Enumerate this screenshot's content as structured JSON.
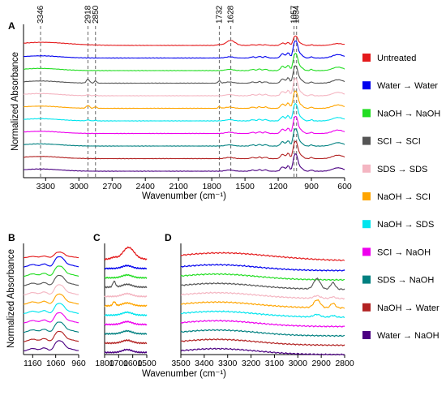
{
  "chart_data": [
    {
      "panel": "A",
      "type": "line",
      "ylabel": "Normalized Absorbance",
      "xlabel": "Wavenumber (cm⁻¹)",
      "xlim": [
        3500,
        600
      ],
      "xticks": [
        3300,
        3000,
        2700,
        2400,
        2100,
        1800,
        1500,
        1200,
        900,
        600
      ],
      "peak_lines": [
        3346,
        2918,
        2850,
        1732,
        1628,
        1057,
        1034
      ],
      "series_order": [
        "Untreated",
        "Water → Water",
        "NaOH → NaOH",
        "SCI → SCI",
        "SDS → SDS",
        "NaOH → SCI",
        "NaOH → SDS",
        "SCI → NaOH",
        "SDS → NaOH",
        "NaOH → Water",
        "Water → NaOH"
      ]
    },
    {
      "panel": "B",
      "type": "line",
      "ylabel": "Normalized Absorbance",
      "xlim": [
        1200,
        960
      ],
      "xticks": [
        1160,
        1060,
        960
      ]
    },
    {
      "panel": "C",
      "type": "line",
      "xlim": [
        1800,
        1500
      ],
      "xticks": [
        1800,
        1700,
        1600,
        1500
      ]
    },
    {
      "panel": "D",
      "type": "line",
      "xlabel": "Wavenumber (cm⁻¹)",
      "xlim": [
        3500,
        2800
      ],
      "xticks": [
        3500,
        3400,
        3300,
        3200,
        3100,
        3000,
        2900,
        2800
      ]
    }
  ],
  "legend": [
    {
      "label": "Untreated",
      "color": "#e41a1c"
    },
    {
      "label": "Water → Water",
      "color": "#0000ee"
    },
    {
      "label": "NaOH → NaOH",
      "color": "#22dd22"
    },
    {
      "label": "SCI → SCI",
      "color": "#555555"
    },
    {
      "label": "SDS → SDS",
      "color": "#f4b6c2"
    },
    {
      "label": "NaOH → SCI",
      "color": "#ffa500"
    },
    {
      "label": "NaOH → SDS",
      "color": "#00e5ee"
    },
    {
      "label": "SCI → NaOH",
      "color": "#ee00ee"
    },
    {
      "label": "SDS → NaOH",
      "color": "#008080"
    },
    {
      "label": "NaOH → Water",
      "color": "#b22222"
    },
    {
      "label": "Water → NaOH",
      "color": "#4b0082"
    }
  ]
}
